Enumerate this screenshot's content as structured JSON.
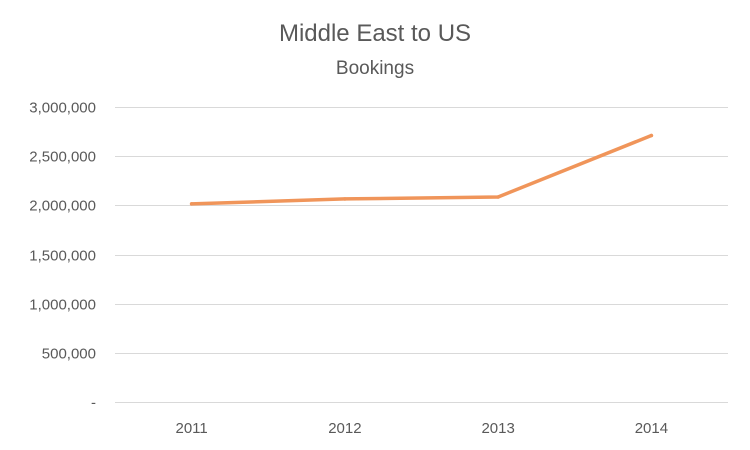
{
  "chart_data": {
    "type": "line",
    "title": "Middle East to US",
    "subtitle": "Bookings",
    "xlabel": "",
    "ylabel": "",
    "categories": [
      "2011",
      "2012",
      "2013",
      "2014"
    ],
    "series": [
      {
        "values": [
          2015000,
          2065000,
          2085000,
          2710000
        ],
        "color": "#F0955A"
      }
    ],
    "ylim": [
      0,
      3000000
    ],
    "yticks": [
      0,
      500000,
      1000000,
      1500000,
      2000000,
      2500000,
      3000000
    ],
    "ytick_labels": [
      "-",
      "500,000",
      "1,000,000",
      "1,500,000",
      "2,000,000",
      "2,500,000",
      "3,000,000"
    ],
    "grid": true,
    "legend": "none",
    "gridline_color": "#D9D9D9"
  }
}
